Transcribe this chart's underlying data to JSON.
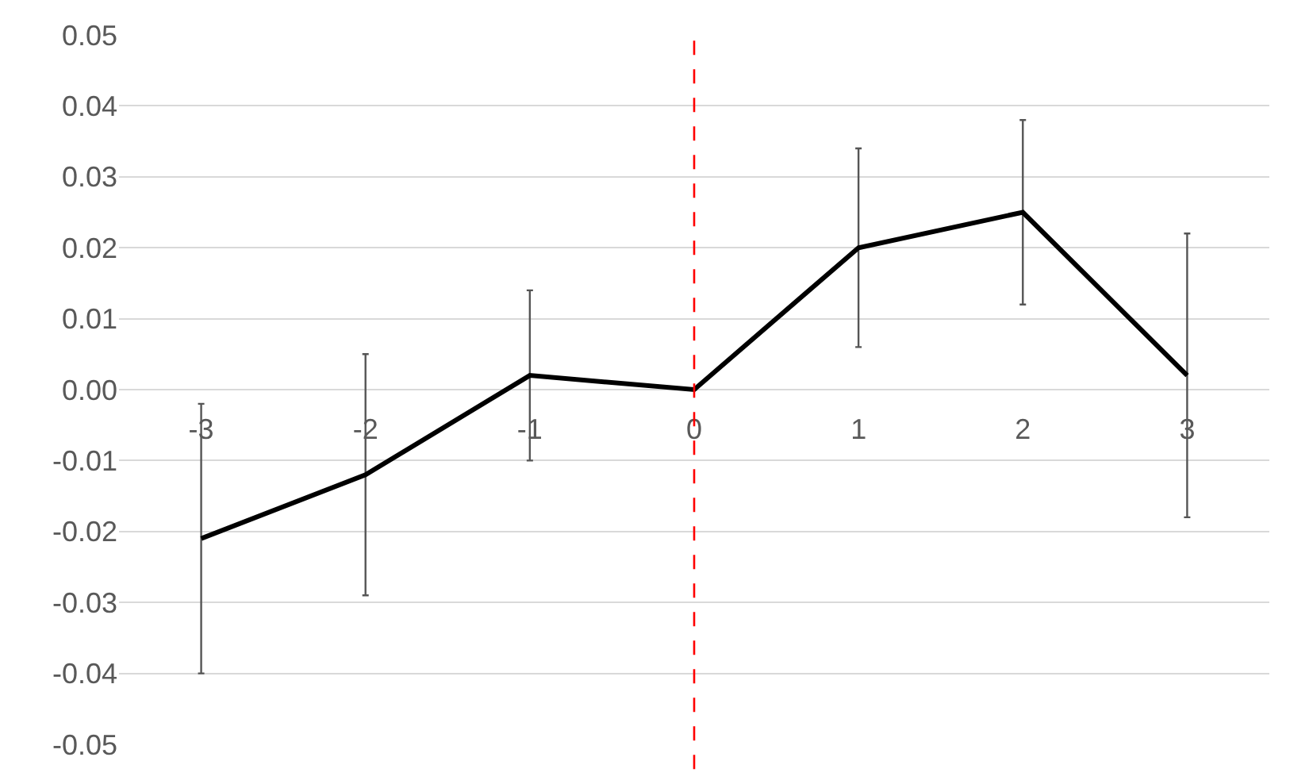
{
  "chart_data": {
    "type": "line",
    "x": [
      -3,
      -2,
      -1,
      0,
      1,
      2,
      3
    ],
    "series": [
      {
        "color": "#000000",
        "values": [
          -0.021,
          -0.012,
          0.002,
          0.0,
          0.02,
          0.025,
          0.002
        ],
        "errors": [
          0.019,
          0.017,
          0.012,
          null,
          0.014,
          0.013,
          0.02
        ]
      }
    ],
    "xlim": [
      -3.5,
      3.5
    ],
    "xticks": [
      -3,
      -2,
      -1,
      0,
      1,
      2,
      3
    ],
    "ylim": [
      -0.05,
      0.05
    ],
    "yticks": [
      {
        "value": -0.05,
        "label": "-0.05"
      },
      {
        "value": -0.04,
        "label": "-0.04"
      },
      {
        "value": -0.03,
        "label": "-0.03"
      },
      {
        "value": -0.02,
        "label": "-0.02"
      },
      {
        "value": -0.01,
        "label": "-0.01"
      },
      {
        "value": 0,
        "label": "0.00"
      },
      {
        "value": 0.01,
        "label": "0.01"
      },
      {
        "value": 0.02,
        "label": "0.02"
      },
      {
        "value": 0.03,
        "label": "0.03"
      },
      {
        "value": 0.04,
        "label": "0.04"
      },
      {
        "value": 0.05,
        "label": "0.05"
      }
    ],
    "ref_lines": [
      {
        "axis": "x",
        "value": 0,
        "color": "#ff0000",
        "line_style": "dashed"
      }
    ],
    "grid": "y",
    "legend": false,
    "marker": "none",
    "line_style": "solid"
  }
}
